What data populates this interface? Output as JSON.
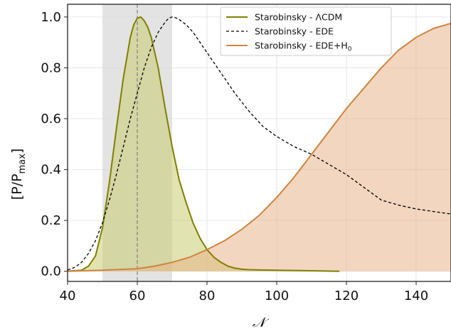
{
  "chart_data": {
    "type": "line",
    "xlabel": "𝒩",
    "ylabel": "[P/P",
    "ylabel_sub": "max",
    "ylabel_end": "]",
    "xlim": [
      40,
      150
    ],
    "ylim": [
      -0.04,
      1.05
    ],
    "xticks": [
      40,
      60,
      80,
      100,
      120,
      140
    ],
    "yticks": [
      0.0,
      0.2,
      0.4,
      0.6,
      0.8,
      1.0
    ],
    "ytick_labels": [
      "0.0",
      "0.2",
      "0.4",
      "0.6",
      "0.8",
      "1.0"
    ],
    "grid": true,
    "legend_position": "top-right",
    "shaded_band": {
      "x_range": [
        50,
        70
      ],
      "color": "#d9d9d9"
    },
    "vline": {
      "x": 60,
      "style": "dashed",
      "color": "#888888"
    },
    "series": [
      {
        "name": "Starobinsky - ΛCDM",
        "color": "#808000",
        "fill": "#c8cc70",
        "style": "solid",
        "x": [
          40,
          44,
          46,
          48,
          50,
          52,
          54,
          56,
          58,
          59,
          60,
          61,
          62,
          63,
          64,
          66,
          68,
          70,
          72,
          74,
          76,
          78,
          80,
          82,
          84,
          86,
          88,
          90,
          92,
          95,
          100,
          105,
          110,
          118
        ],
        "y": [
          0.0,
          0.004,
          0.02,
          0.06,
          0.17,
          0.35,
          0.56,
          0.76,
          0.92,
          0.97,
          0.995,
          1.0,
          0.985,
          0.96,
          0.92,
          0.8,
          0.64,
          0.49,
          0.36,
          0.27,
          0.19,
          0.13,
          0.085,
          0.055,
          0.035,
          0.02,
          0.012,
          0.008,
          0.006,
          0.005,
          0.004,
          0.003,
          0.002,
          0.0
        ]
      },
      {
        "name": "Starobinsky - EDE",
        "color": "#000000",
        "style": "dashed",
        "x": [
          40,
          42,
          44,
          46,
          48,
          50,
          52,
          54,
          56,
          58,
          60,
          62,
          64,
          66,
          68,
          69,
          70,
          71,
          72,
          74,
          76,
          78,
          80,
          84,
          88,
          92,
          96,
          100,
          105,
          110,
          115,
          120,
          125,
          130,
          135,
          140,
          145,
          150
        ],
        "y": [
          0.005,
          0.015,
          0.035,
          0.07,
          0.12,
          0.19,
          0.28,
          0.38,
          0.49,
          0.6,
          0.7,
          0.8,
          0.88,
          0.94,
          0.98,
          0.995,
          1.0,
          0.997,
          0.99,
          0.97,
          0.94,
          0.9,
          0.86,
          0.78,
          0.7,
          0.63,
          0.57,
          0.53,
          0.49,
          0.46,
          0.42,
          0.38,
          0.33,
          0.28,
          0.26,
          0.245,
          0.235,
          0.225
        ]
      },
      {
        "name": "Starobinsky - EDE+H",
        "name_sub": "0",
        "color": "#cd853f",
        "fill": "#e8b48a",
        "style": "solid",
        "x": [
          40,
          50,
          60,
          65,
          70,
          75,
          80,
          85,
          90,
          95,
          100,
          105,
          110,
          115,
          120,
          125,
          130,
          135,
          140,
          145,
          150
        ],
        "y": [
          0.0,
          0.004,
          0.01,
          0.02,
          0.035,
          0.055,
          0.085,
          0.12,
          0.165,
          0.22,
          0.29,
          0.37,
          0.46,
          0.55,
          0.64,
          0.72,
          0.8,
          0.87,
          0.92,
          0.955,
          0.975
        ]
      }
    ]
  }
}
